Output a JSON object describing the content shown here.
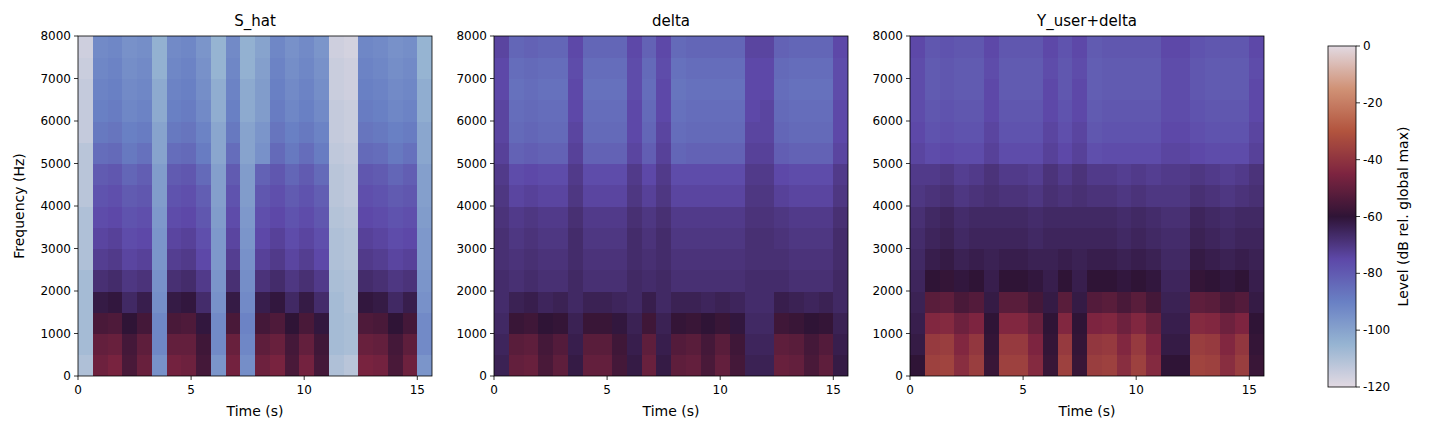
{
  "chart_data": [
    {
      "type": "heatmap",
      "title": "S_hat",
      "x_label": "Time (s)",
      "y_label": "Frequency (Hz)",
      "xlim": [
        0,
        15.65
      ],
      "xticks": [
        0,
        5,
        10,
        15
      ],
      "ylim": [
        0,
        8000
      ],
      "yticks": [
        0,
        1000,
        2000,
        3000,
        4000,
        5000,
        6000,
        7000,
        8000
      ],
      "cells": [
        [
          -110,
          -48,
          -46,
          -55,
          -49,
          -95,
          -47,
          -48,
          -56,
          -96,
          -47,
          -94,
          -48,
          -46,
          -55,
          -47,
          -56,
          -110,
          -112,
          -46,
          -47,
          -55,
          -48,
          -96
        ],
        [
          -108,
          -50,
          -49,
          -56,
          -51,
          -92,
          -50,
          -50,
          -57,
          -93,
          -49,
          -92,
          -51,
          -49,
          -56,
          -50,
          -57,
          -108,
          -109,
          -49,
          -50,
          -56,
          -51,
          -93
        ],
        [
          -108,
          -55,
          -54,
          -60,
          -56,
          -92,
          -55,
          -54,
          -61,
          -93,
          -55,
          -91,
          -56,
          -54,
          -60,
          -55,
          -61,
          -108,
          -109,
          -54,
          -55,
          -60,
          -56,
          -93
        ],
        [
          -108,
          -62,
          -61,
          -66,
          -63,
          -94,
          -62,
          -61,
          -67,
          -95,
          -62,
          -93,
          -63,
          -61,
          -66,
          -62,
          -67,
          -108,
          -110,
          -61,
          -62,
          -66,
          -63,
          -95
        ],
        [
          -108,
          -68,
          -67,
          -70,
          -69,
          -95,
          -68,
          -67,
          -71,
          -96,
          -68,
          -94,
          -69,
          -67,
          -70,
          -68,
          -71,
          -109,
          -110,
          -67,
          -68,
          -70,
          -69,
          -96
        ],
        [
          -110,
          -72,
          -71,
          -74,
          -73,
          -96,
          -72,
          -71,
          -75,
          -97,
          -72,
          -95,
          -73,
          -71,
          -74,
          -72,
          -75,
          -110,
          -111,
          -71,
          -72,
          -74,
          -73,
          -97
        ],
        [
          -110,
          -74,
          -73,
          -76,
          -75,
          -96,
          -74,
          -73,
          -77,
          -97,
          -74,
          -96,
          -75,
          -73,
          -76,
          -74,
          -77,
          -110,
          -111,
          -73,
          -74,
          -76,
          -75,
          -97
        ],
        [
          -110,
          -76,
          -75,
          -78,
          -77,
          -97,
          -76,
          -75,
          -79,
          -98,
          -76,
          -97,
          -77,
          -75,
          -78,
          -76,
          -79,
          -111,
          -112,
          -75,
          -76,
          -78,
          -77,
          -98
        ],
        [
          -112,
          -78,
          -77,
          -80,
          -79,
          -98,
          -78,
          -77,
          -81,
          -99,
          -78,
          -98,
          -79,
          -77,
          -80,
          -78,
          -81,
          -112,
          -113,
          -77,
          -78,
          -80,
          -79,
          -99
        ],
        [
          -112,
          -80,
          -79,
          -83,
          -81,
          -98,
          -80,
          -79,
          -84,
          -99,
          -80,
          -98,
          -82,
          -79,
          -83,
          -80,
          -84,
          -112,
          -113,
          -79,
          -80,
          -83,
          -81,
          -99
        ],
        [
          -112,
          -85,
          -84,
          -88,
          -86,
          -100,
          -85,
          -84,
          -89,
          -101,
          -85,
          -100,
          -95,
          -84,
          -88,
          -85,
          -89,
          -113,
          -114,
          -84,
          -85,
          -88,
          -86,
          -101
        ],
        [
          -114,
          -88,
          -87,
          -90,
          -89,
          -100,
          -88,
          -87,
          -91,
          -101,
          -88,
          -100,
          -96,
          -87,
          -90,
          -88,
          -91,
          -114,
          -115,
          -87,
          -88,
          -90,
          -89,
          -101
        ],
        [
          -114,
          -90,
          -89,
          -92,
          -91,
          -102,
          -90,
          -89,
          -93,
          -103,
          -90,
          -102,
          -98,
          -89,
          -92,
          -90,
          -93,
          -114,
          -115,
          -89,
          -90,
          -92,
          -91,
          -103
        ],
        [
          -114,
          -91,
          -90,
          -93,
          -92,
          -102,
          -91,
          -90,
          -94,
          -103,
          -91,
          -102,
          -98,
          -90,
          -93,
          -91,
          -94,
          -115,
          -116,
          -90,
          -91,
          -93,
          -92,
          -103
        ],
        [
          -115,
          -92,
          -91,
          -94,
          -93,
          -104,
          -92,
          -91,
          -95,
          -105,
          -92,
          -104,
          -99,
          -91,
          -94,
          -92,
          -95,
          -115,
          -116,
          -91,
          -92,
          -94,
          -93,
          -105
        ],
        [
          -116,
          -93,
          -92,
          -95,
          -94,
          -104,
          -93,
          -92,
          -96,
          -105,
          -93,
          -104,
          -100,
          -92,
          -95,
          -93,
          -96,
          -116,
          -117,
          -92,
          -93,
          -95,
          -94,
          -105
        ]
      ]
    },
    {
      "type": "heatmap",
      "title": "delta",
      "x_label": "Time (s)",
      "xlim": [
        0,
        15.65
      ],
      "xticks": [
        0,
        5,
        10,
        15
      ],
      "ylim": [
        0,
        8000
      ],
      "yticks": [
        0,
        1000,
        2000,
        3000,
        4000,
        5000,
        6000,
        7000,
        8000
      ],
      "cells": [
        [
          -64,
          -50,
          -49,
          -55,
          -51,
          -62,
          -50,
          -50,
          -56,
          -62,
          -49,
          -62,
          -51,
          -50,
          -55,
          -50,
          -56,
          -64,
          -64,
          -49,
          -50,
          -55,
          -51,
          -62
        ],
        [
          -65,
          -52,
          -51,
          -56,
          -53,
          -63,
          -52,
          -52,
          -57,
          -63,
          -51,
          -63,
          -53,
          -52,
          -56,
          -52,
          -57,
          -65,
          -65,
          -51,
          -52,
          -56,
          -53,
          -63
        ],
        [
          -66,
          -58,
          -57,
          -60,
          -59,
          -64,
          -58,
          -58,
          -61,
          -64,
          -57,
          -64,
          -59,
          -58,
          -60,
          -58,
          -61,
          -66,
          -66,
          -57,
          -58,
          -60,
          -59,
          -64
        ],
        [
          -67,
          -64,
          -63,
          -65,
          -64,
          -66,
          -64,
          -64,
          -65,
          -66,
          -63,
          -66,
          -64,
          -64,
          -65,
          -64,
          -65,
          -67,
          -67,
          -63,
          -64,
          -65,
          -64,
          -66
        ],
        [
          -67,
          -68,
          -67,
          -68,
          -68,
          -66,
          -68,
          -68,
          -68,
          -66,
          -67,
          -66,
          -68,
          -68,
          -68,
          -68,
          -68,
          -67,
          -67,
          -67,
          -68,
          -68,
          -68,
          -66
        ],
        [
          -68,
          -69,
          -68,
          -69,
          -69,
          -67,
          -69,
          -69,
          -69,
          -67,
          -68,
          -67,
          -69,
          -69,
          -69,
          -69,
          -69,
          -68,
          -68,
          -68,
          -69,
          -69,
          -69,
          -67
        ],
        [
          -68,
          -70,
          -69,
          -70,
          -70,
          -67,
          -70,
          -70,
          -70,
          -67,
          -69,
          -67,
          -70,
          -70,
          -70,
          -70,
          -70,
          -68,
          -68,
          -69,
          -70,
          -70,
          -70,
          -67
        ],
        [
          -69,
          -71,
          -70,
          -71,
          -71,
          -68,
          -71,
          -71,
          -71,
          -68,
          -70,
          -68,
          -71,
          -71,
          -71,
          -71,
          -71,
          -69,
          -69,
          -70,
          -71,
          -71,
          -71,
          -68
        ],
        [
          -70,
          -74,
          -73,
          -74,
          -74,
          -70,
          -74,
          -74,
          -74,
          -70,
          -73,
          -70,
          -74,
          -74,
          -74,
          -74,
          -74,
          -70,
          -70,
          -73,
          -74,
          -74,
          -74,
          -70
        ],
        [
          -71,
          -76,
          -75,
          -76,
          -76,
          -71,
          -76,
          -76,
          -76,
          -71,
          -75,
          -71,
          -76,
          -76,
          -76,
          -76,
          -76,
          -71,
          -71,
          -75,
          -76,
          -76,
          -76,
          -71
        ],
        [
          -73,
          -82,
          -81,
          -82,
          -82,
          -73,
          -82,
          -82,
          -82,
          -74,
          -81,
          -73,
          -83,
          -82,
          -82,
          -82,
          -82,
          -73,
          -73,
          -81,
          -82,
          -82,
          -82,
          -74
        ],
        [
          -74,
          -84,
          -83,
          -84,
          -84,
          -74,
          -84,
          -84,
          -84,
          -75,
          -83,
          -74,
          -85,
          -84,
          -84,
          -84,
          -84,
          -74,
          -74,
          -83,
          -84,
          -84,
          -84,
          -75
        ],
        [
          -74,
          -85,
          -84,
          -85,
          -85,
          -75,
          -85,
          -85,
          -85,
          -75,
          -84,
          -75,
          -86,
          -85,
          -85,
          -85,
          -85,
          -75,
          -74,
          -84,
          -85,
          -85,
          -85,
          -75
        ],
        [
          -75,
          -86,
          -85,
          -86,
          -86,
          -75,
          -86,
          -86,
          -86,
          -76,
          -85,
          -75,
          -87,
          -86,
          -86,
          -86,
          -86,
          -75,
          -75,
          -85,
          -86,
          -86,
          -86,
          -76
        ],
        [
          -75,
          -85,
          -84,
          -85,
          -85,
          -76,
          -85,
          -85,
          -85,
          -76,
          -84,
          -76,
          -86,
          -85,
          -85,
          -85,
          -85,
          -75,
          -75,
          -84,
          -85,
          -85,
          -85,
          -76
        ],
        [
          -74,
          -83,
          -82,
          -83,
          -83,
          -75,
          -83,
          -83,
          -83,
          -75,
          -82,
          -75,
          -84,
          -83,
          -83,
          -83,
          -83,
          -74,
          -74,
          -82,
          -83,
          -83,
          -83,
          -75
        ]
      ]
    },
    {
      "type": "heatmap",
      "title": "Y_user+delta",
      "x_label": "Time (s)",
      "xlim": [
        0,
        15.65
      ],
      "xticks": [
        0,
        5,
        10,
        15
      ],
      "ylim": [
        0,
        8000
      ],
      "yticks": [
        0,
        1000,
        2000,
        3000,
        4000,
        5000,
        6000,
        7000,
        8000
      ],
      "cells": [
        [
          -60,
          -36,
          -35,
          -42,
          -37,
          -58,
          -36,
          -36,
          -43,
          -58,
          -36,
          -58,
          -37,
          -36,
          -42,
          -36,
          -43,
          -60,
          -60,
          -35,
          -36,
          -42,
          -37,
          -58
        ],
        [
          -62,
          -38,
          -37,
          -44,
          -39,
          -59,
          -38,
          -38,
          -45,
          -59,
          -38,
          -59,
          -39,
          -38,
          -44,
          -38,
          -45,
          -62,
          -62,
          -37,
          -38,
          -44,
          -39,
          -59
        ],
        [
          -63,
          -44,
          -43,
          -48,
          -45,
          -60,
          -44,
          -44,
          -49,
          -60,
          -44,
          -60,
          -45,
          -44,
          -48,
          -44,
          -49,
          -63,
          -63,
          -43,
          -44,
          -48,
          -45,
          -60
        ],
        [
          -64,
          -52,
          -51,
          -55,
          -53,
          -62,
          -52,
          -52,
          -56,
          -62,
          -52,
          -62,
          -53,
          -52,
          -55,
          -52,
          -56,
          -64,
          -64,
          -51,
          -52,
          -55,
          -53,
          -62
        ],
        [
          -65,
          -60,
          -59,
          -61,
          -60,
          -63,
          -60,
          -60,
          -61,
          -63,
          -60,
          -63,
          -60,
          -60,
          -61,
          -60,
          -61,
          -65,
          -65,
          -59,
          -60,
          -61,
          -60,
          -63
        ],
        [
          -66,
          -63,
          -62,
          -64,
          -63,
          -64,
          -63,
          -63,
          -64,
          -64,
          -63,
          -64,
          -63,
          -63,
          -64,
          -63,
          -64,
          -66,
          -66,
          -62,
          -63,
          -64,
          -63,
          -64
        ],
        [
          -67,
          -65,
          -64,
          -66,
          -65,
          -65,
          -65,
          -65,
          -66,
          -65,
          -65,
          -65,
          -65,
          -65,
          -66,
          -65,
          -66,
          -67,
          -67,
          -64,
          -65,
          -66,
          -65,
          -65
        ],
        [
          -68,
          -66,
          -65,
          -67,
          -66,
          -66,
          -66,
          -66,
          -67,
          -66,
          -66,
          -66,
          -66,
          -66,
          -67,
          -66,
          -67,
          -68,
          -68,
          -65,
          -66,
          -67,
          -66,
          -66
        ],
        [
          -70,
          -69,
          -68,
          -70,
          -69,
          -68,
          -69,
          -69,
          -70,
          -68,
          -69,
          -68,
          -69,
          -69,
          -70,
          -69,
          -70,
          -70,
          -70,
          -68,
          -69,
          -70,
          -69,
          -68
        ],
        [
          -71,
          -71,
          -70,
          -72,
          -71,
          -69,
          -71,
          -71,
          -72,
          -69,
          -71,
          -69,
          -71,
          -71,
          -72,
          -71,
          -72,
          -71,
          -71,
          -70,
          -71,
          -72,
          -71,
          -69
        ],
        [
          -74,
          -76,
          -75,
          -76,
          -76,
          -73,
          -76,
          -76,
          -76,
          -73,
          -75,
          -73,
          -77,
          -76,
          -76,
          -76,
          -76,
          -74,
          -74,
          -75,
          -76,
          -76,
          -76,
          -73
        ],
        [
          -75,
          -78,
          -77,
          -78,
          -78,
          -74,
          -78,
          -78,
          -78,
          -74,
          -77,
          -74,
          -79,
          -78,
          -78,
          -78,
          -78,
          -75,
          -75,
          -77,
          -78,
          -78,
          -78,
          -74
        ],
        [
          -76,
          -79,
          -78,
          -79,
          -79,
          -75,
          -79,
          -79,
          -79,
          -75,
          -78,
          -75,
          -80,
          -79,
          -79,
          -79,
          -79,
          -76,
          -76,
          -78,
          -79,
          -79,
          -79,
          -75
        ],
        [
          -76,
          -80,
          -79,
          -80,
          -80,
          -75,
          -80,
          -80,
          -80,
          -75,
          -79,
          -75,
          -81,
          -80,
          -80,
          -80,
          -80,
          -76,
          -76,
          -79,
          -80,
          -80,
          -80,
          -75
        ],
        [
          -76,
          -80,
          -79,
          -80,
          -80,
          -76,
          -80,
          -80,
          -80,
          -76,
          -79,
          -76,
          -81,
          -80,
          -80,
          -80,
          -80,
          -76,
          -76,
          -79,
          -80,
          -80,
          -80,
          -76
        ],
        [
          -75,
          -79,
          -78,
          -79,
          -79,
          -75,
          -79,
          -79,
          -79,
          -75,
          -78,
          -75,
          -80,
          -79,
          -79,
          -79,
          -79,
          -75,
          -75,
          -78,
          -79,
          -79,
          -79,
          -75
        ]
      ],
      "colorbar": {
        "label": "Level (dB rel. global max)",
        "range": [
          -120,
          0
        ],
        "ticks": [
          -120,
          -100,
          -80,
          -60,
          -40,
          -20,
          0
        ]
      }
    }
  ]
}
